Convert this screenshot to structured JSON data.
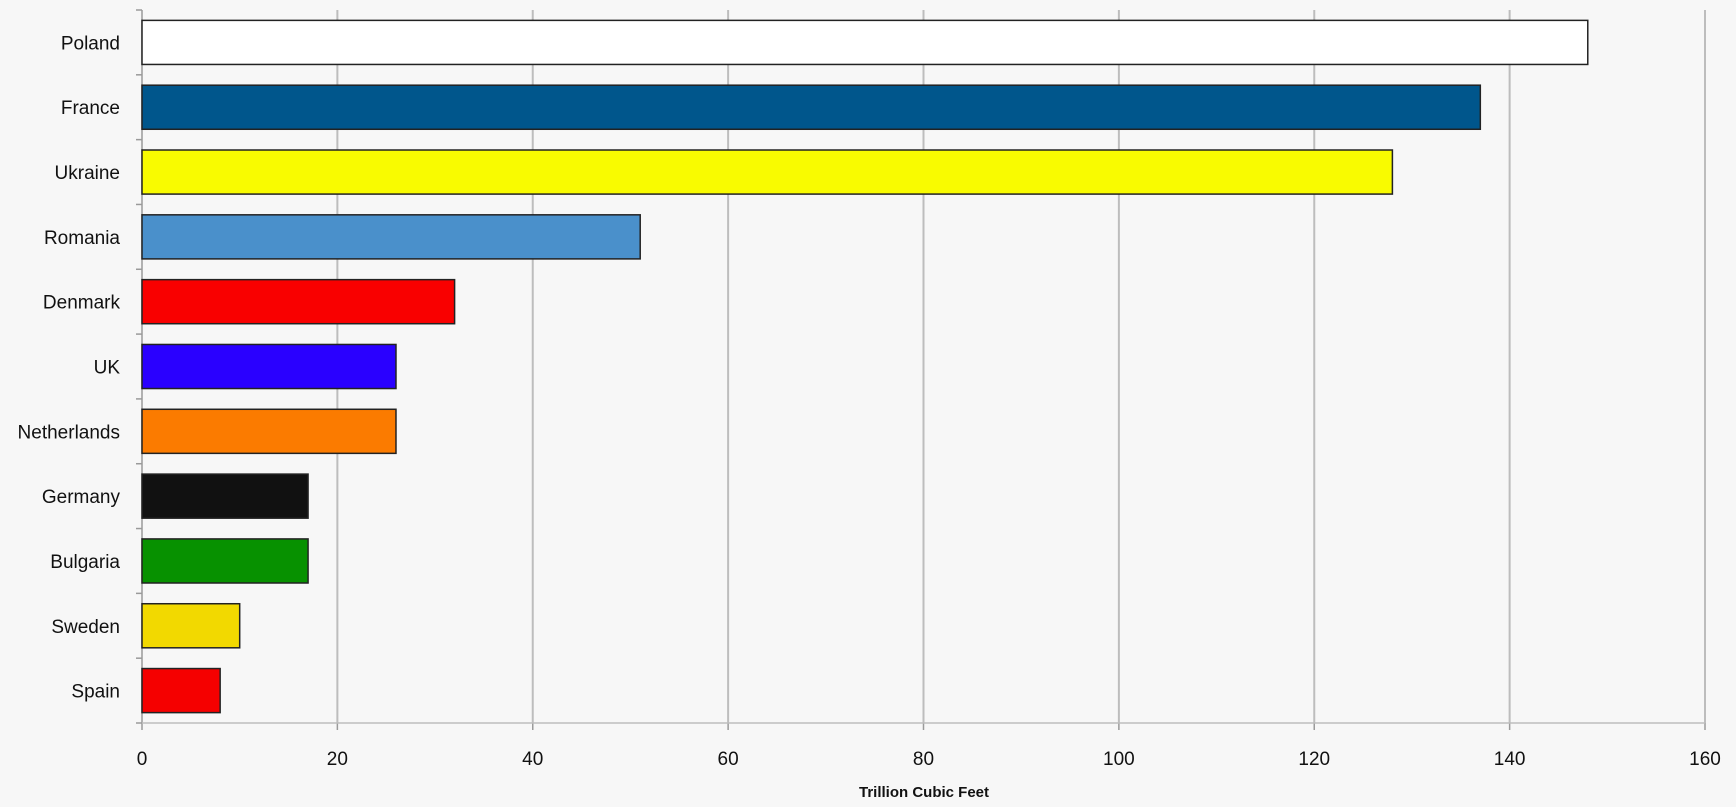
{
  "chart_data": {
    "type": "bar",
    "orientation": "horizontal",
    "title": "",
    "xlabel": "Trillion Cubic Feet",
    "ylabel": "",
    "xlim": [
      0,
      160
    ],
    "xticks": [
      0,
      20,
      40,
      60,
      80,
      100,
      120,
      140,
      160
    ],
    "grid": "vertical",
    "legend": "none",
    "categories": [
      "Poland",
      "France",
      "Ukraine",
      "Romania",
      "Denmark",
      "UK",
      "Netherlands",
      "Germany",
      "Bulgaria",
      "Sweden",
      "Spain"
    ],
    "values": [
      148,
      137,
      128,
      51,
      32,
      26,
      26,
      17,
      17,
      10,
      8
    ],
    "colors": [
      "#ffffff",
      "#00568c",
      "#f9fb00",
      "#4a90cb",
      "#f90000",
      "#2a00ff",
      "#fb7b00",
      "#111111",
      "#079100",
      "#f2d900",
      "#f50000"
    ]
  }
}
